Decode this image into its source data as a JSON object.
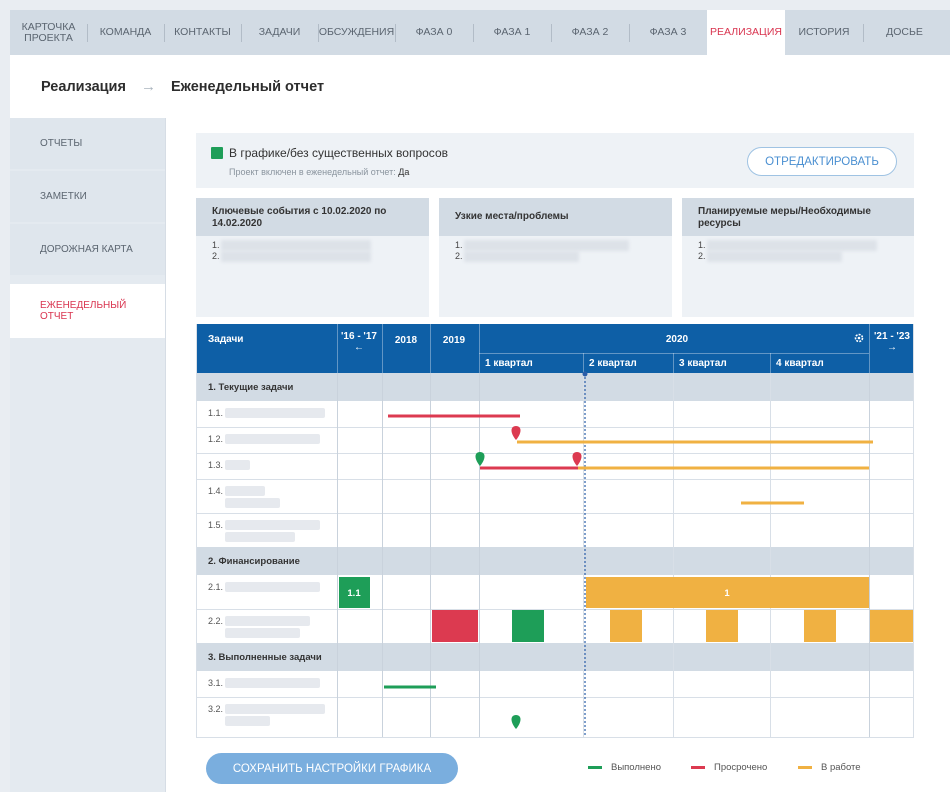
{
  "tabs": [
    {
      "label": "КАРТОЧКА ПРОЕКТА",
      "active": false
    },
    {
      "label": "КОМАНДА",
      "active": false
    },
    {
      "label": "КОНТАКТЫ",
      "active": false
    },
    {
      "label": "ЗАДАЧИ",
      "active": false
    },
    {
      "label": "ОБСУЖДЕНИЯ",
      "active": false
    },
    {
      "label": "ФАЗА 0",
      "active": false
    },
    {
      "label": "ФАЗА 1",
      "active": false
    },
    {
      "label": "ФАЗА 2",
      "active": false
    },
    {
      "label": "ФАЗА 3",
      "active": false
    },
    {
      "label": "РЕАЛИЗАЦИЯ",
      "active": true
    },
    {
      "label": "ИСТОРИЯ",
      "active": false
    },
    {
      "label": "ДОСЬЕ",
      "active": false
    }
  ],
  "breadcrumb": {
    "section": "Реализация",
    "arrow": "→",
    "page": "Еженедельный отчет"
  },
  "sidebar": {
    "items": [
      {
        "label": "ОТЧЕТЫ",
        "active": false
      },
      {
        "label": "ЗАМЕТКИ",
        "active": false
      },
      {
        "label": "ДОРОЖНАЯ КАРТА",
        "active": false
      },
      {
        "label": "ЕЖЕНЕДЕЛЬНЫЙ ОТЧЕТ",
        "active": true
      }
    ]
  },
  "status": {
    "title": "В графике/без существенных вопросов",
    "subtitle_label": "Проект включен в еженедельный отчет:",
    "subtitle_value": "Да",
    "color": "#1e9e58",
    "edit_button": "ОТРЕДАКТИРОВАТЬ"
  },
  "cards": [
    {
      "title": "Ключевые события с 10.02.2020 по 14.02.2020",
      "items": [
        "1.",
        "2."
      ]
    },
    {
      "title": "Узкие места/проблемы",
      "items": [
        "1.",
        "2."
      ]
    },
    {
      "title": "Планируемые меры/Необходимые ресурсы",
      "items": [
        "1.",
        "2."
      ]
    }
  ],
  "gantt": {
    "header": {
      "tasks": "Задачи",
      "range_left": "'16 - '17",
      "range_left_arrow": "←",
      "y2018": "2018",
      "y2019": "2019",
      "y2020": "2020",
      "range_right": "'21 - '23",
      "range_right_arrow": "→",
      "gear_icon": "gear-icon"
    },
    "quarters": [
      "1 квартал",
      "2 квартал",
      "3 квартал",
      "4 квартал"
    ],
    "groups": [
      {
        "title": "1. Текущие задачи",
        "rows": [
          "1.1.",
          "1.2.",
          "1.3.",
          "1.4.",
          "1.5."
        ]
      },
      {
        "title": "2. Финансирование",
        "rows": [
          "2.1.",
          "2.2."
        ]
      },
      {
        "title": "3. Выполненные задачи",
        "rows": [
          "3.1.",
          "3.2."
        ]
      }
    ],
    "labels": {
      "funding_2016": "1.1",
      "funding_2020": "1"
    }
  },
  "colors": {
    "done": "#1e9e58",
    "overdue": "#dc3a50",
    "in_progress": "#f0b142",
    "header_blue": "#0e5fa6"
  },
  "save_button": "СОХРАНИТЬ НАСТРОЙКИ ГРАФИКА",
  "legend": [
    {
      "label": "Выполнено",
      "color": "#1e9e58"
    },
    {
      "label": "Просрочено",
      "color": "#dc3a50"
    },
    {
      "label": "В работе",
      "color": "#f0b142"
    }
  ]
}
